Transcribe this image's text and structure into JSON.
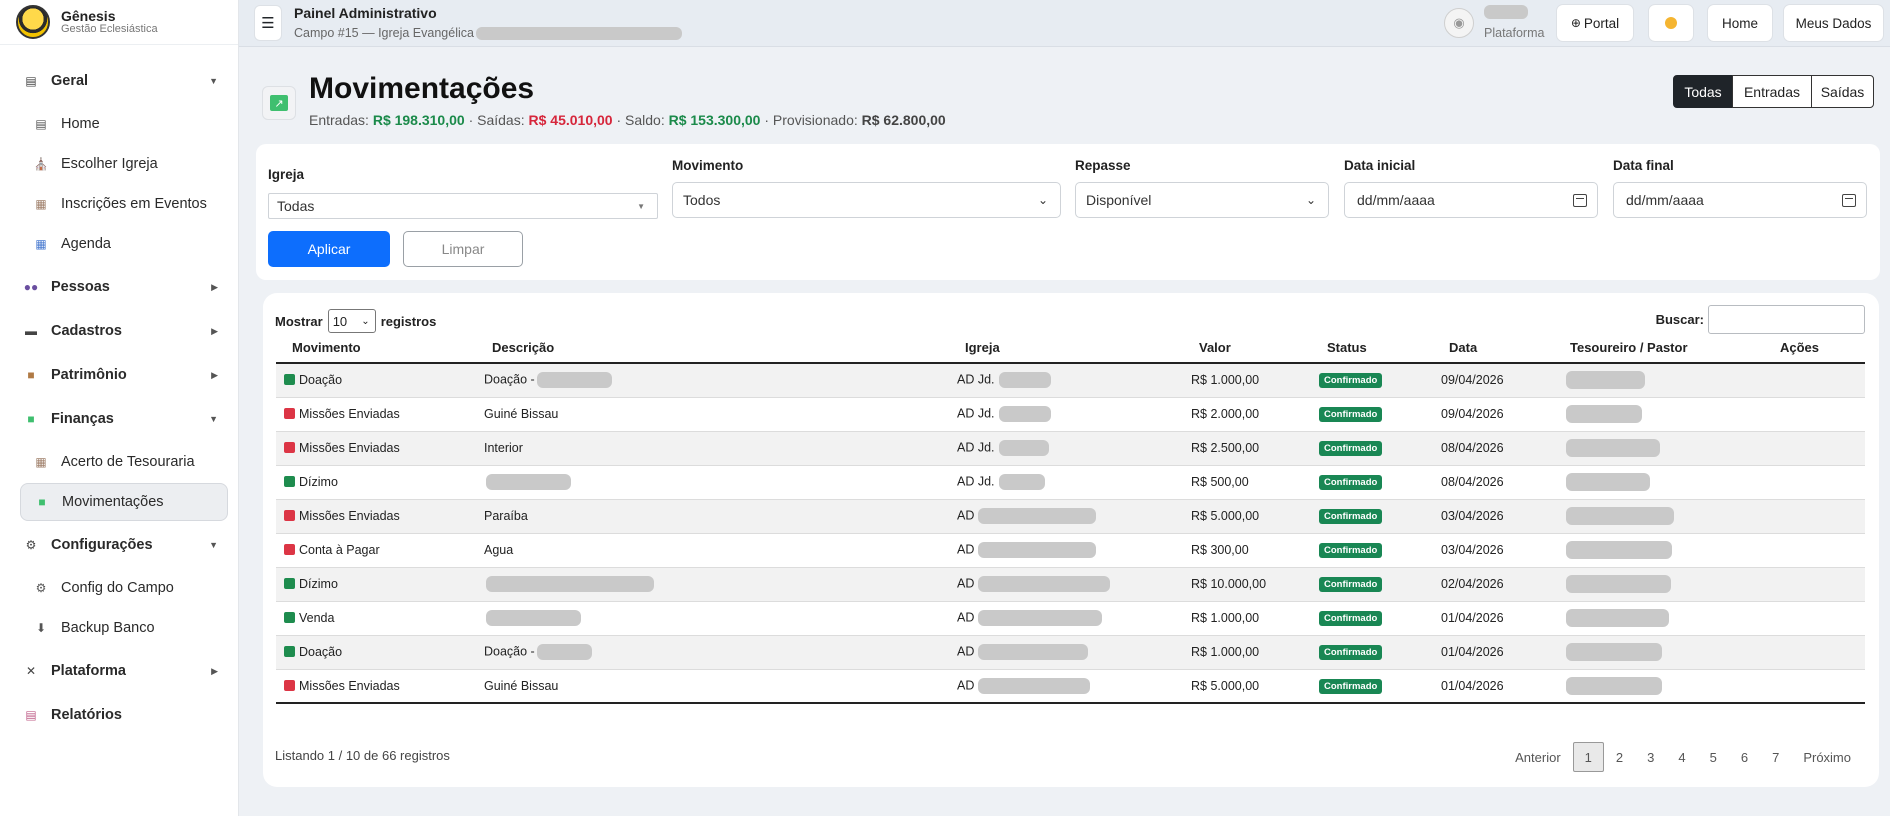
{
  "brand": {
    "name": "Gênesis",
    "subtitle": "Gestão Eclesiástica"
  },
  "sidebar": {
    "groups": [
      {
        "label": "Geral",
        "icon": "grid-icon",
        "expanded": true,
        "items": [
          {
            "label": "Home",
            "icon": "grid-icon"
          },
          {
            "label": "Escolher Igreja",
            "icon": "church-icon"
          },
          {
            "label": "Inscrições em Eventos",
            "icon": "document-icon"
          },
          {
            "label": "Agenda",
            "icon": "calendar-icon"
          }
        ]
      },
      {
        "label": "Pessoas",
        "icon": "people-icon",
        "expanded": false
      },
      {
        "label": "Cadastros",
        "icon": "car-icon",
        "expanded": false
      },
      {
        "label": "Patrimônio",
        "icon": "box-icon",
        "expanded": false
      },
      {
        "label": "Finanças",
        "icon": "chart-icon",
        "expanded": true,
        "items": [
          {
            "label": "Acerto de Tesouraria",
            "icon": "document-icon"
          },
          {
            "label": "Movimentações",
            "icon": "chart-icon",
            "active": true
          }
        ]
      },
      {
        "label": "Configurações",
        "icon": "gear-icon",
        "expanded": true,
        "items": [
          {
            "label": "Config do Campo",
            "icon": "gear-icon"
          },
          {
            "label": "Backup Banco",
            "icon": "download-icon"
          }
        ]
      },
      {
        "label": "Plataforma",
        "icon": "tools-icon",
        "expanded": false
      },
      {
        "label": "Relatórios",
        "icon": "report-icon",
        "expanded": false
      }
    ]
  },
  "topbar": {
    "title": "Painel Administrativo",
    "subtitle": "Campo #15 — Igreja Evangélica",
    "platform_label": "Plataforma",
    "buttons": {
      "portal": "Portal",
      "home": "Home",
      "meus_dados": "Meus Dados"
    }
  },
  "page": {
    "title": "Movimentações",
    "summary": {
      "entradas_label": "Entradas:",
      "entradas": "R$ 198.310,00",
      "saidas_label": "· Saídas:",
      "saidas": "R$ 45.010,00",
      "saldo_label": "· Saldo:",
      "saldo": "R$ 153.300,00",
      "prov_label": "· Provisionado:",
      "prov": "R$ 62.800,00"
    },
    "segments": [
      "Todas",
      "Entradas",
      "Saídas"
    ],
    "active_segment": "Todas"
  },
  "filters": {
    "igreja": {
      "label": "Igreja",
      "value": "Todas"
    },
    "movimento": {
      "label": "Movimento",
      "value": "Todos"
    },
    "repasse": {
      "label": "Repasse",
      "value": "Disponível"
    },
    "data_inicial": {
      "label": "Data inicial",
      "placeholder": "dd/mm/aaaa"
    },
    "data_final": {
      "label": "Data final",
      "placeholder": "dd/mm/aaaa"
    },
    "apply": "Aplicar",
    "clear": "Limpar"
  },
  "table": {
    "show_label": "Mostrar",
    "show_value": "10",
    "records_label": "registros",
    "search_label": "Buscar:",
    "columns": [
      "Movimento",
      "Descrição",
      "Igreja",
      "Valor",
      "Status",
      "Data",
      "Tesoureiro / Pastor",
      "Ações"
    ],
    "rows": [
      {
        "movimento": "Doação",
        "tipo": "entrada",
        "descricao": "Doação -",
        "igreja": "AD Jd.",
        "valor": "R$ 1.000,00",
        "status": "Confirmado",
        "data": "09/04/2026"
      },
      {
        "movimento": "Missões Enviadas",
        "tipo": "saida",
        "descricao": "Guiné Bissau",
        "igreja": "AD Jd.",
        "valor": "R$ 2.000,00",
        "status": "Confirmado",
        "data": "09/04/2026"
      },
      {
        "movimento": "Missões Enviadas",
        "tipo": "saida",
        "descricao": "Interior",
        "igreja": "AD Jd.",
        "valor": "R$ 2.500,00",
        "status": "Confirmado",
        "data": "08/04/2026"
      },
      {
        "movimento": "Dízimo",
        "tipo": "entrada",
        "descricao": "",
        "igreja": "AD Jd.",
        "valor": "R$ 500,00",
        "status": "Confirmado",
        "data": "08/04/2026"
      },
      {
        "movimento": "Missões Enviadas",
        "tipo": "saida",
        "descricao": "Paraíba",
        "igreja": "AD",
        "valor": "R$ 5.000,00",
        "status": "Confirmado",
        "data": "03/04/2026"
      },
      {
        "movimento": "Conta à Pagar",
        "tipo": "saida",
        "descricao": "Agua",
        "igreja": "AD",
        "valor": "R$ 300,00",
        "status": "Confirmado",
        "data": "03/04/2026"
      },
      {
        "movimento": "Dízimo",
        "tipo": "entrada",
        "descricao": "",
        "igreja": "AD",
        "valor": "R$ 10.000,00",
        "status": "Confirmado",
        "data": "02/04/2026"
      },
      {
        "movimento": "Venda",
        "tipo": "entrada",
        "descricao": "",
        "igreja": "AD",
        "valor": "R$ 1.000,00",
        "status": "Confirmado",
        "data": "01/04/2026"
      },
      {
        "movimento": "Doação",
        "tipo": "entrada",
        "descricao": "Doação -",
        "igreja": "AD",
        "valor": "R$ 1.000,00",
        "status": "Confirmado",
        "data": "01/04/2026"
      },
      {
        "movimento": "Missões Enviadas",
        "tipo": "saida",
        "descricao": "Guiné Bissau",
        "igreja": "AD",
        "valor": "R$ 5.000,00",
        "status": "Confirmado",
        "data": "01/04/2026"
      }
    ],
    "listing": "Listando 1 / 10 de 66 registros",
    "pagination": {
      "prev": "Anterior",
      "pages": [
        "1",
        "2",
        "3",
        "4",
        "5",
        "6",
        "7"
      ],
      "current": "1",
      "next": "Próximo"
    }
  },
  "colors": {
    "accent": "#0d6efd",
    "entrada": "#1e8c4e",
    "saida": "#dc3545",
    "badge": "#198754"
  }
}
